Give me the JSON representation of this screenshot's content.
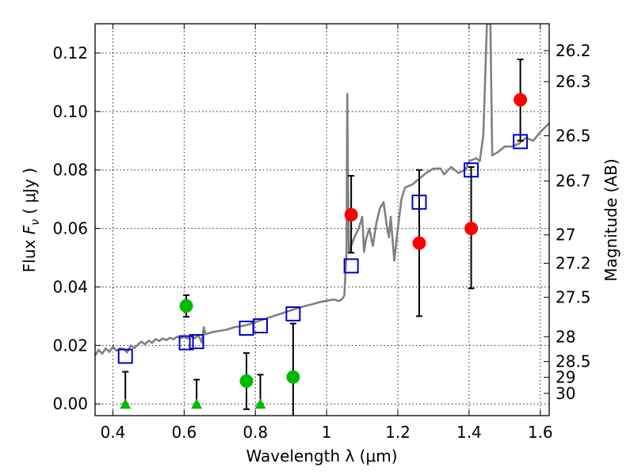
{
  "chart_data": {
    "type": "scatter",
    "xlabel": "Wavelength  λ (μm)",
    "ylabel_prefix": "Flux  ",
    "ylabel_symbol": "F",
    "ylabel_subscript": "ν",
    "ylabel_unit": "  ( μJy )",
    "ylabel_right": "Magnitude (AB)",
    "xlim": [
      0.35,
      1.625
    ],
    "ylim": [
      -0.004,
      0.13
    ],
    "grid": true,
    "x_ticks": [
      0.4,
      0.6,
      0.8,
      1.0,
      1.2,
      1.4,
      1.6
    ],
    "x_tick_labels": [
      "0.4",
      "0.6",
      "0.8",
      "1",
      "1.2",
      "1.4",
      "1.6"
    ],
    "y_ticks": [
      0.0,
      0.02,
      0.04,
      0.06,
      0.08,
      0.1,
      0.12
    ],
    "y_tick_labels": [
      "0.00",
      "0.02",
      "0.04",
      "0.06",
      "0.08",
      "0.10",
      "0.12"
    ],
    "mag_ticks": [
      {
        "label": "26.2",
        "flux": 0.1208
      },
      {
        "label": "26.3",
        "flux": 0.1102
      },
      {
        "label": "26.5",
        "flux": 0.0917
      },
      {
        "label": "26.7",
        "flux": 0.0762
      },
      {
        "label": "27",
        "flux": 0.0578
      },
      {
        "label": "27.2",
        "flux": 0.0481
      },
      {
        "label": "27.5",
        "flux": 0.0365
      },
      {
        "label": "28",
        "flux": 0.023
      },
      {
        "label": "28.5",
        "flux": 0.0145
      },
      {
        "label": "29",
        "flux": 0.0091
      },
      {
        "label": "30",
        "flux": 0.0036
      }
    ],
    "colors": {
      "model": "#808080",
      "model_photometry": "#0000cc",
      "high_points": "#ff0000",
      "low_points": "#00bb00",
      "upper_limits": "#00bb00",
      "errorbar": "#000000"
    },
    "model_spectrum": [
      [
        0.35,
        0.0165
      ],
      [
        0.36,
        0.0185
      ],
      [
        0.37,
        0.0172
      ],
      [
        0.38,
        0.019
      ],
      [
        0.39,
        0.0178
      ],
      [
        0.4,
        0.0196
      ],
      [
        0.41,
        0.0182
      ],
      [
        0.42,
        0.019
      ],
      [
        0.43,
        0.0188
      ],
      [
        0.44,
        0.0176
      ],
      [
        0.45,
        0.02
      ],
      [
        0.46,
        0.0191
      ],
      [
        0.47,
        0.0202
      ],
      [
        0.48,
        0.0213
      ],
      [
        0.49,
        0.0204
      ],
      [
        0.5,
        0.0216
      ],
      [
        0.51,
        0.0209
      ],
      [
        0.52,
        0.0222
      ],
      [
        0.53,
        0.0215
      ],
      [
        0.54,
        0.0224
      ],
      [
        0.55,
        0.0218
      ],
      [
        0.56,
        0.0226
      ],
      [
        0.57,
        0.0221
      ],
      [
        0.58,
        0.023
      ],
      [
        0.59,
        0.0225
      ],
      [
        0.6,
        0.0229
      ],
      [
        0.61,
        0.0224
      ],
      [
        0.62,
        0.0232
      ],
      [
        0.63,
        0.0225
      ],
      [
        0.64,
        0.0234
      ],
      [
        0.65,
        0.021
      ],
      [
        0.655,
        0.0262
      ],
      [
        0.66,
        0.0238
      ],
      [
        0.68,
        0.0246
      ],
      [
        0.7,
        0.025
      ],
      [
        0.72,
        0.0254
      ],
      [
        0.74,
        0.0262
      ],
      [
        0.76,
        0.0266
      ],
      [
        0.78,
        0.0271
      ],
      [
        0.8,
        0.028
      ],
      [
        0.82,
        0.0288
      ],
      [
        0.84,
        0.0296
      ],
      [
        0.86,
        0.0304
      ],
      [
        0.88,
        0.0312
      ],
      [
        0.9,
        0.032
      ],
      [
        0.92,
        0.0328
      ],
      [
        0.94,
        0.0335
      ],
      [
        0.96,
        0.0341
      ],
      [
        0.98,
        0.0348
      ],
      [
        1.0,
        0.0353
      ],
      [
        1.02,
        0.0357
      ],
      [
        1.035,
        0.0352
      ],
      [
        1.045,
        0.036
      ],
      [
        1.05,
        0.0372
      ],
      [
        1.053,
        0.045
      ],
      [
        1.056,
        0.052
      ],
      [
        1.058,
        0.106
      ],
      [
        1.06,
        0.076
      ],
      [
        1.063,
        0.052
      ],
      [
        1.07,
        0.0545
      ],
      [
        1.08,
        0.0575
      ],
      [
        1.09,
        0.06
      ],
      [
        1.1,
        0.064
      ],
      [
        1.105,
        0.052
      ],
      [
        1.11,
        0.056
      ],
      [
        1.12,
        0.06
      ],
      [
        1.13,
        0.054
      ],
      [
        1.14,
        0.062
      ],
      [
        1.15,
        0.067
      ],
      [
        1.16,
        0.069
      ],
      [
        1.17,
        0.06
      ],
      [
        1.175,
        0.057
      ],
      [
        1.18,
        0.064
      ],
      [
        1.19,
        0.049
      ],
      [
        1.2,
        0.06
      ],
      [
        1.21,
        0.07
      ],
      [
        1.22,
        0.074
      ],
      [
        1.24,
        0.075
      ],
      [
        1.26,
        0.077
      ],
      [
        1.28,
        0.079
      ],
      [
        1.3,
        0.0805
      ],
      [
        1.32,
        0.0805
      ],
      [
        1.33,
        0.0785
      ],
      [
        1.35,
        0.081
      ],
      [
        1.37,
        0.079
      ],
      [
        1.39,
        0.08
      ],
      [
        1.4,
        0.083
      ],
      [
        1.42,
        0.084
      ],
      [
        1.43,
        0.083
      ],
      [
        1.44,
        0.092
      ],
      [
        1.45,
        0.13
      ],
      [
        1.46,
        0.13
      ],
      [
        1.465,
        0.085
      ],
      [
        1.48,
        0.086
      ],
      [
        1.5,
        0.088
      ],
      [
        1.52,
        0.088
      ],
      [
        1.54,
        0.089
      ],
      [
        1.56,
        0.091
      ],
      [
        1.58,
        0.09
      ],
      [
        1.6,
        0.093
      ],
      [
        1.625,
        0.096
      ]
    ],
    "model_photometry": [
      {
        "x": 0.435,
        "y": 0.0163
      },
      {
        "x": 0.606,
        "y": 0.0209
      },
      {
        "x": 0.635,
        "y": 0.0213
      },
      {
        "x": 0.775,
        "y": 0.0259
      },
      {
        "x": 0.814,
        "y": 0.0267
      },
      {
        "x": 0.906,
        "y": 0.0308
      },
      {
        "x": 1.069,
        "y": 0.0472
      },
      {
        "x": 1.26,
        "y": 0.069
      },
      {
        "x": 1.406,
        "y": 0.08
      },
      {
        "x": 1.544,
        "y": 0.0897
      }
    ],
    "detections_high": [
      {
        "x": 1.069,
        "y": 0.0647,
        "err_low": 0.0517,
        "err_high": 0.078
      },
      {
        "x": 1.26,
        "y": 0.055,
        "err_low": 0.03,
        "err_high": 0.08
      },
      {
        "x": 1.406,
        "y": 0.06,
        "err_low": 0.0395,
        "err_high": 0.081
      },
      {
        "x": 1.544,
        "y": 0.104,
        "err_low": 0.09,
        "err_high": 0.1178
      }
    ],
    "detections_low": [
      {
        "x": 0.606,
        "y": 0.0335,
        "err_low": 0.0298,
        "err_high": 0.0372
      },
      {
        "x": 0.775,
        "y": 0.0078,
        "err_low": -0.0018,
        "err_high": 0.0174
      },
      {
        "x": 0.906,
        "y": 0.0092,
        "err_low": -0.0044,
        "err_high": 0.0275
      }
    ],
    "upper_limits": [
      {
        "x": 0.435,
        "y": 0.0,
        "err_high": 0.011
      },
      {
        "x": 0.635,
        "y": 0.0,
        "err_high": 0.0083
      },
      {
        "x": 0.814,
        "y": 0.0,
        "err_high": 0.01
      }
    ]
  }
}
